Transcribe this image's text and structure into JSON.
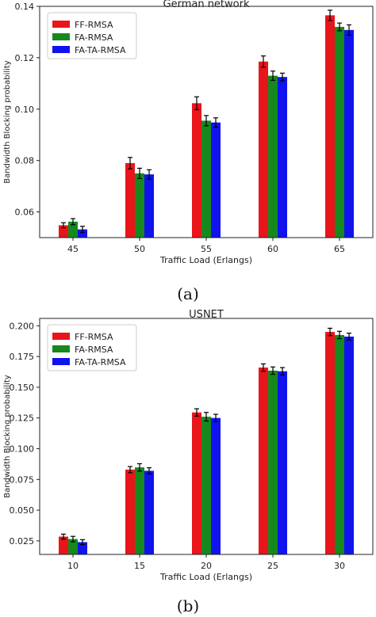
{
  "chart_data": [
    {
      "type": "bar",
      "title": "German network",
      "xlabel": "Traffic Load (Erlangs)",
      "ylabel": "Bandwidth Blocking probability",
      "categories": [
        "45",
        "50",
        "55",
        "60",
        "65"
      ],
      "ylim": [
        0.05,
        0.14
      ],
      "yticks": [
        "0.06",
        "0.08",
        "0.10",
        "0.12",
        "0.14"
      ],
      "legend_position": "top-left",
      "grid": false,
      "series": [
        {
          "name": "FF-RMSA",
          "color": "#e8151b",
          "values": [
            0.0548,
            0.079,
            0.1023,
            0.1185,
            0.1365
          ],
          "errors": [
            0.001,
            0.0022,
            0.0025,
            0.0022,
            0.002
          ]
        },
        {
          "name": "FA-RMSA",
          "color": "#15891e",
          "values": [
            0.0562,
            0.075,
            0.0955,
            0.113,
            0.132
          ],
          "errors": [
            0.0012,
            0.002,
            0.002,
            0.0018,
            0.0015
          ]
        },
        {
          "name": "FA-TA-RMSA",
          "color": "#1013ee",
          "values": [
            0.0532,
            0.0746,
            0.0948,
            0.1125,
            0.1308
          ],
          "errors": [
            0.0012,
            0.0018,
            0.0018,
            0.0015,
            0.002
          ]
        }
      ],
      "caption": "(a)"
    },
    {
      "type": "bar",
      "title": "USNET",
      "xlabel": "Traffic Load (Erlangs)",
      "ylabel": "Bandwidth Blocking probability",
      "categories": [
        "10",
        "15",
        "20",
        "25",
        "30"
      ],
      "ylim": [
        0.014,
        0.206
      ],
      "yticks": [
        "0.025",
        "0.050",
        "0.075",
        "0.100",
        "0.125",
        "0.150",
        "0.175",
        "0.200"
      ],
      "legend_position": "top-left",
      "grid": false,
      "series": [
        {
          "name": "FF-RMSA",
          "color": "#e8151b",
          "values": [
            0.0285,
            0.083,
            0.1295,
            0.166,
            0.195
          ],
          "errors": [
            0.002,
            0.0025,
            0.003,
            0.003,
            0.003
          ]
        },
        {
          "name": "FA-RMSA",
          "color": "#15891e",
          "values": [
            0.0265,
            0.0848,
            0.126,
            0.1635,
            0.1925
          ],
          "errors": [
            0.0022,
            0.003,
            0.0035,
            0.003,
            0.003
          ]
        },
        {
          "name": "FA-TA-RMSA",
          "color": "#1013ee",
          "values": [
            0.024,
            0.082,
            0.125,
            0.163,
            0.1912
          ],
          "errors": [
            0.002,
            0.0025,
            0.003,
            0.003,
            0.0028
          ]
        }
      ],
      "caption": "(b)"
    }
  ]
}
